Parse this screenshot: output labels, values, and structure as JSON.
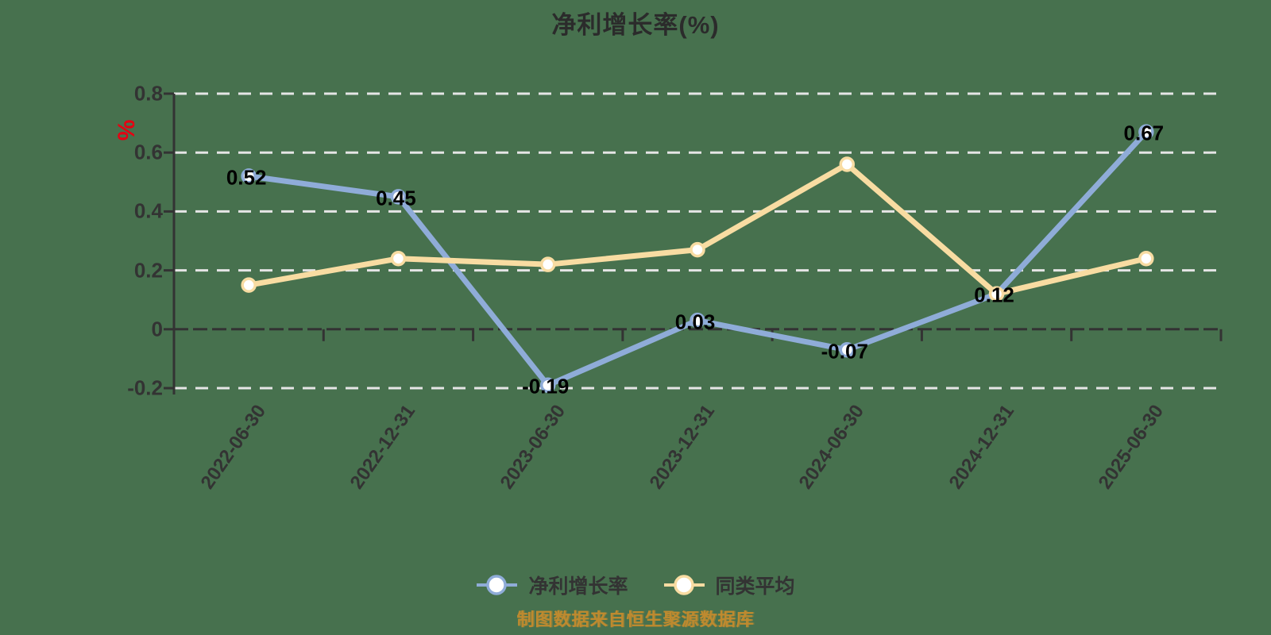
{
  "title": "净利增长率(%)",
  "y_axis_unit": "%",
  "footer_note": "制图数据来自恒生聚源数据库",
  "colors": {
    "background": "#47714E",
    "axis": "#333333",
    "gridline": "#E5E5E5",
    "data_label": "#000000",
    "axis_text": "#333333",
    "unit_red": "#E60012",
    "note_orange": "#BE8A2F",
    "marker_fill": "#FFFFFF"
  },
  "legend": [
    {
      "label": "净利增长率",
      "color": "#8FACD8"
    },
    {
      "label": "同类平均",
      "color": "#F8DCA2"
    }
  ],
  "chart_data": {
    "type": "line",
    "title": "净利增长率(%)",
    "categories": [
      "2022-06-30",
      "2022-12-31",
      "2023-06-30",
      "2023-12-31",
      "2024-06-30",
      "2024-12-31",
      "2025-06-30"
    ],
    "series": [
      {
        "name": "净利增长率",
        "color": "#8FACD8",
        "values": [
          0.52,
          0.45,
          -0.19,
          0.03,
          -0.07,
          0.12,
          0.67
        ],
        "labels": [
          "0.52",
          "0.45",
          "-0.19",
          "0.03",
          "-0.07",
          "0.12",
          "0.67"
        ]
      },
      {
        "name": "同类平均",
        "color": "#F8DCA2",
        "values": [
          0.15,
          0.24,
          0.22,
          0.27,
          0.56,
          0.12,
          0.24
        ],
        "labels": []
      }
    ],
    "ylim": [
      -0.2,
      0.8
    ],
    "yticks": [
      0.8,
      0.6,
      0.4,
      0.2,
      0,
      -0.2
    ],
    "grid": true,
    "grid_style": "dashed",
    "legend_position": "bottom",
    "xlabel": "",
    "ylabel": "%"
  }
}
